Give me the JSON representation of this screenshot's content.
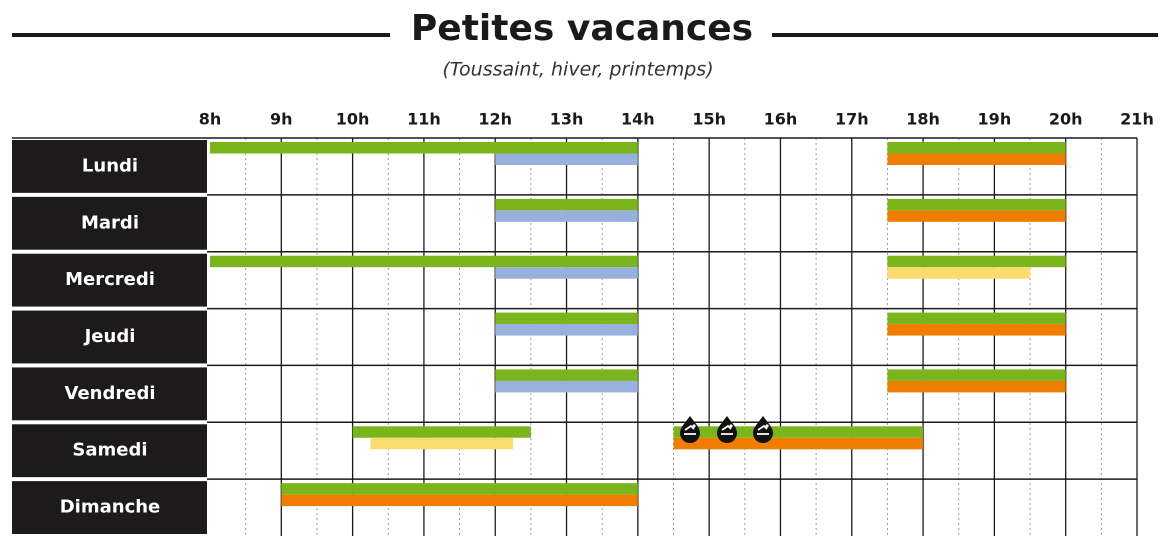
{
  "title": "Petites vacances",
  "subtitle": "(Toussaint, hiver, printemps)",
  "hours": [
    {
      "value": 8,
      "label": "8h"
    },
    {
      "value": 9,
      "label": "9h"
    },
    {
      "value": 10,
      "label": "10h"
    },
    {
      "value": 11,
      "label": "11h"
    },
    {
      "value": 12,
      "label": "12h"
    },
    {
      "value": 13,
      "label": "13h"
    },
    {
      "value": 14,
      "label": "14h"
    },
    {
      "value": 15,
      "label": "15h"
    },
    {
      "value": 16,
      "label": "16h"
    },
    {
      "value": 17,
      "label": "17h"
    },
    {
      "value": 18,
      "label": "18h"
    },
    {
      "value": 19,
      "label": "19h"
    },
    {
      "value": 20,
      "label": "20h"
    },
    {
      "value": 21,
      "label": "21h"
    }
  ],
  "days": [
    {
      "name": "Lundi",
      "bars": [
        {
          "start": 8,
          "end": 14,
          "color": "#7ab51d"
        },
        {
          "start": 12,
          "end": 14,
          "color": "#97b0dc"
        },
        {
          "start": 17.5,
          "end": 20,
          "color": "#7ab51d"
        },
        {
          "start": 17.5,
          "end": 20,
          "color": "#ee7d00"
        }
      ]
    },
    {
      "name": "Mardi",
      "bars": [
        {
          "start": 12,
          "end": 14,
          "color": "#7ab51d"
        },
        {
          "start": 12,
          "end": 14,
          "color": "#97b0dc"
        },
        {
          "start": 17.5,
          "end": 20,
          "color": "#7ab51d"
        },
        {
          "start": 17.5,
          "end": 20,
          "color": "#ee7d00"
        }
      ]
    },
    {
      "name": "Mercredi",
      "bars": [
        {
          "start": 8,
          "end": 14,
          "color": "#7ab51d"
        },
        {
          "start": 12,
          "end": 14,
          "color": "#97b0dc"
        },
        {
          "start": 17.5,
          "end": 20,
          "color": "#7ab51d"
        },
        {
          "start": 17.5,
          "end": 19.5,
          "color": "#fcdc6e"
        }
      ]
    },
    {
      "name": "Jeudi",
      "bars": [
        {
          "start": 12,
          "end": 14,
          "color": "#7ab51d"
        },
        {
          "start": 12,
          "end": 14,
          "color": "#97b0dc"
        },
        {
          "start": 17.5,
          "end": 20,
          "color": "#7ab51d"
        },
        {
          "start": 17.5,
          "end": 20,
          "color": "#ee7d00"
        }
      ]
    },
    {
      "name": "Vendredi",
      "bars": [
        {
          "start": 12,
          "end": 14,
          "color": "#7ab51d"
        },
        {
          "start": 12,
          "end": 14,
          "color": "#97b0dc"
        },
        {
          "start": 17.5,
          "end": 20,
          "color": "#7ab51d"
        },
        {
          "start": 17.5,
          "end": 20,
          "color": "#ee7d00"
        }
      ]
    },
    {
      "name": "Samedi",
      "bars": [
        {
          "start": 10,
          "end": 12.5,
          "color": "#7ab51d"
        },
        {
          "start": 10.25,
          "end": 12.25,
          "color": "#fcdc6e"
        },
        {
          "start": 14.5,
          "end": 18,
          "color": "#7ab51d"
        },
        {
          "start": 14.5,
          "end": 18,
          "color": "#ee7d00"
        }
      ]
    },
    {
      "name": "Dimanche",
      "bars": [
        {
          "start": 9,
          "end": 14,
          "color": "#7ab51d"
        },
        {
          "start": 9,
          "end": 14,
          "color": "#ee7d00"
        }
      ]
    }
  ]
}
